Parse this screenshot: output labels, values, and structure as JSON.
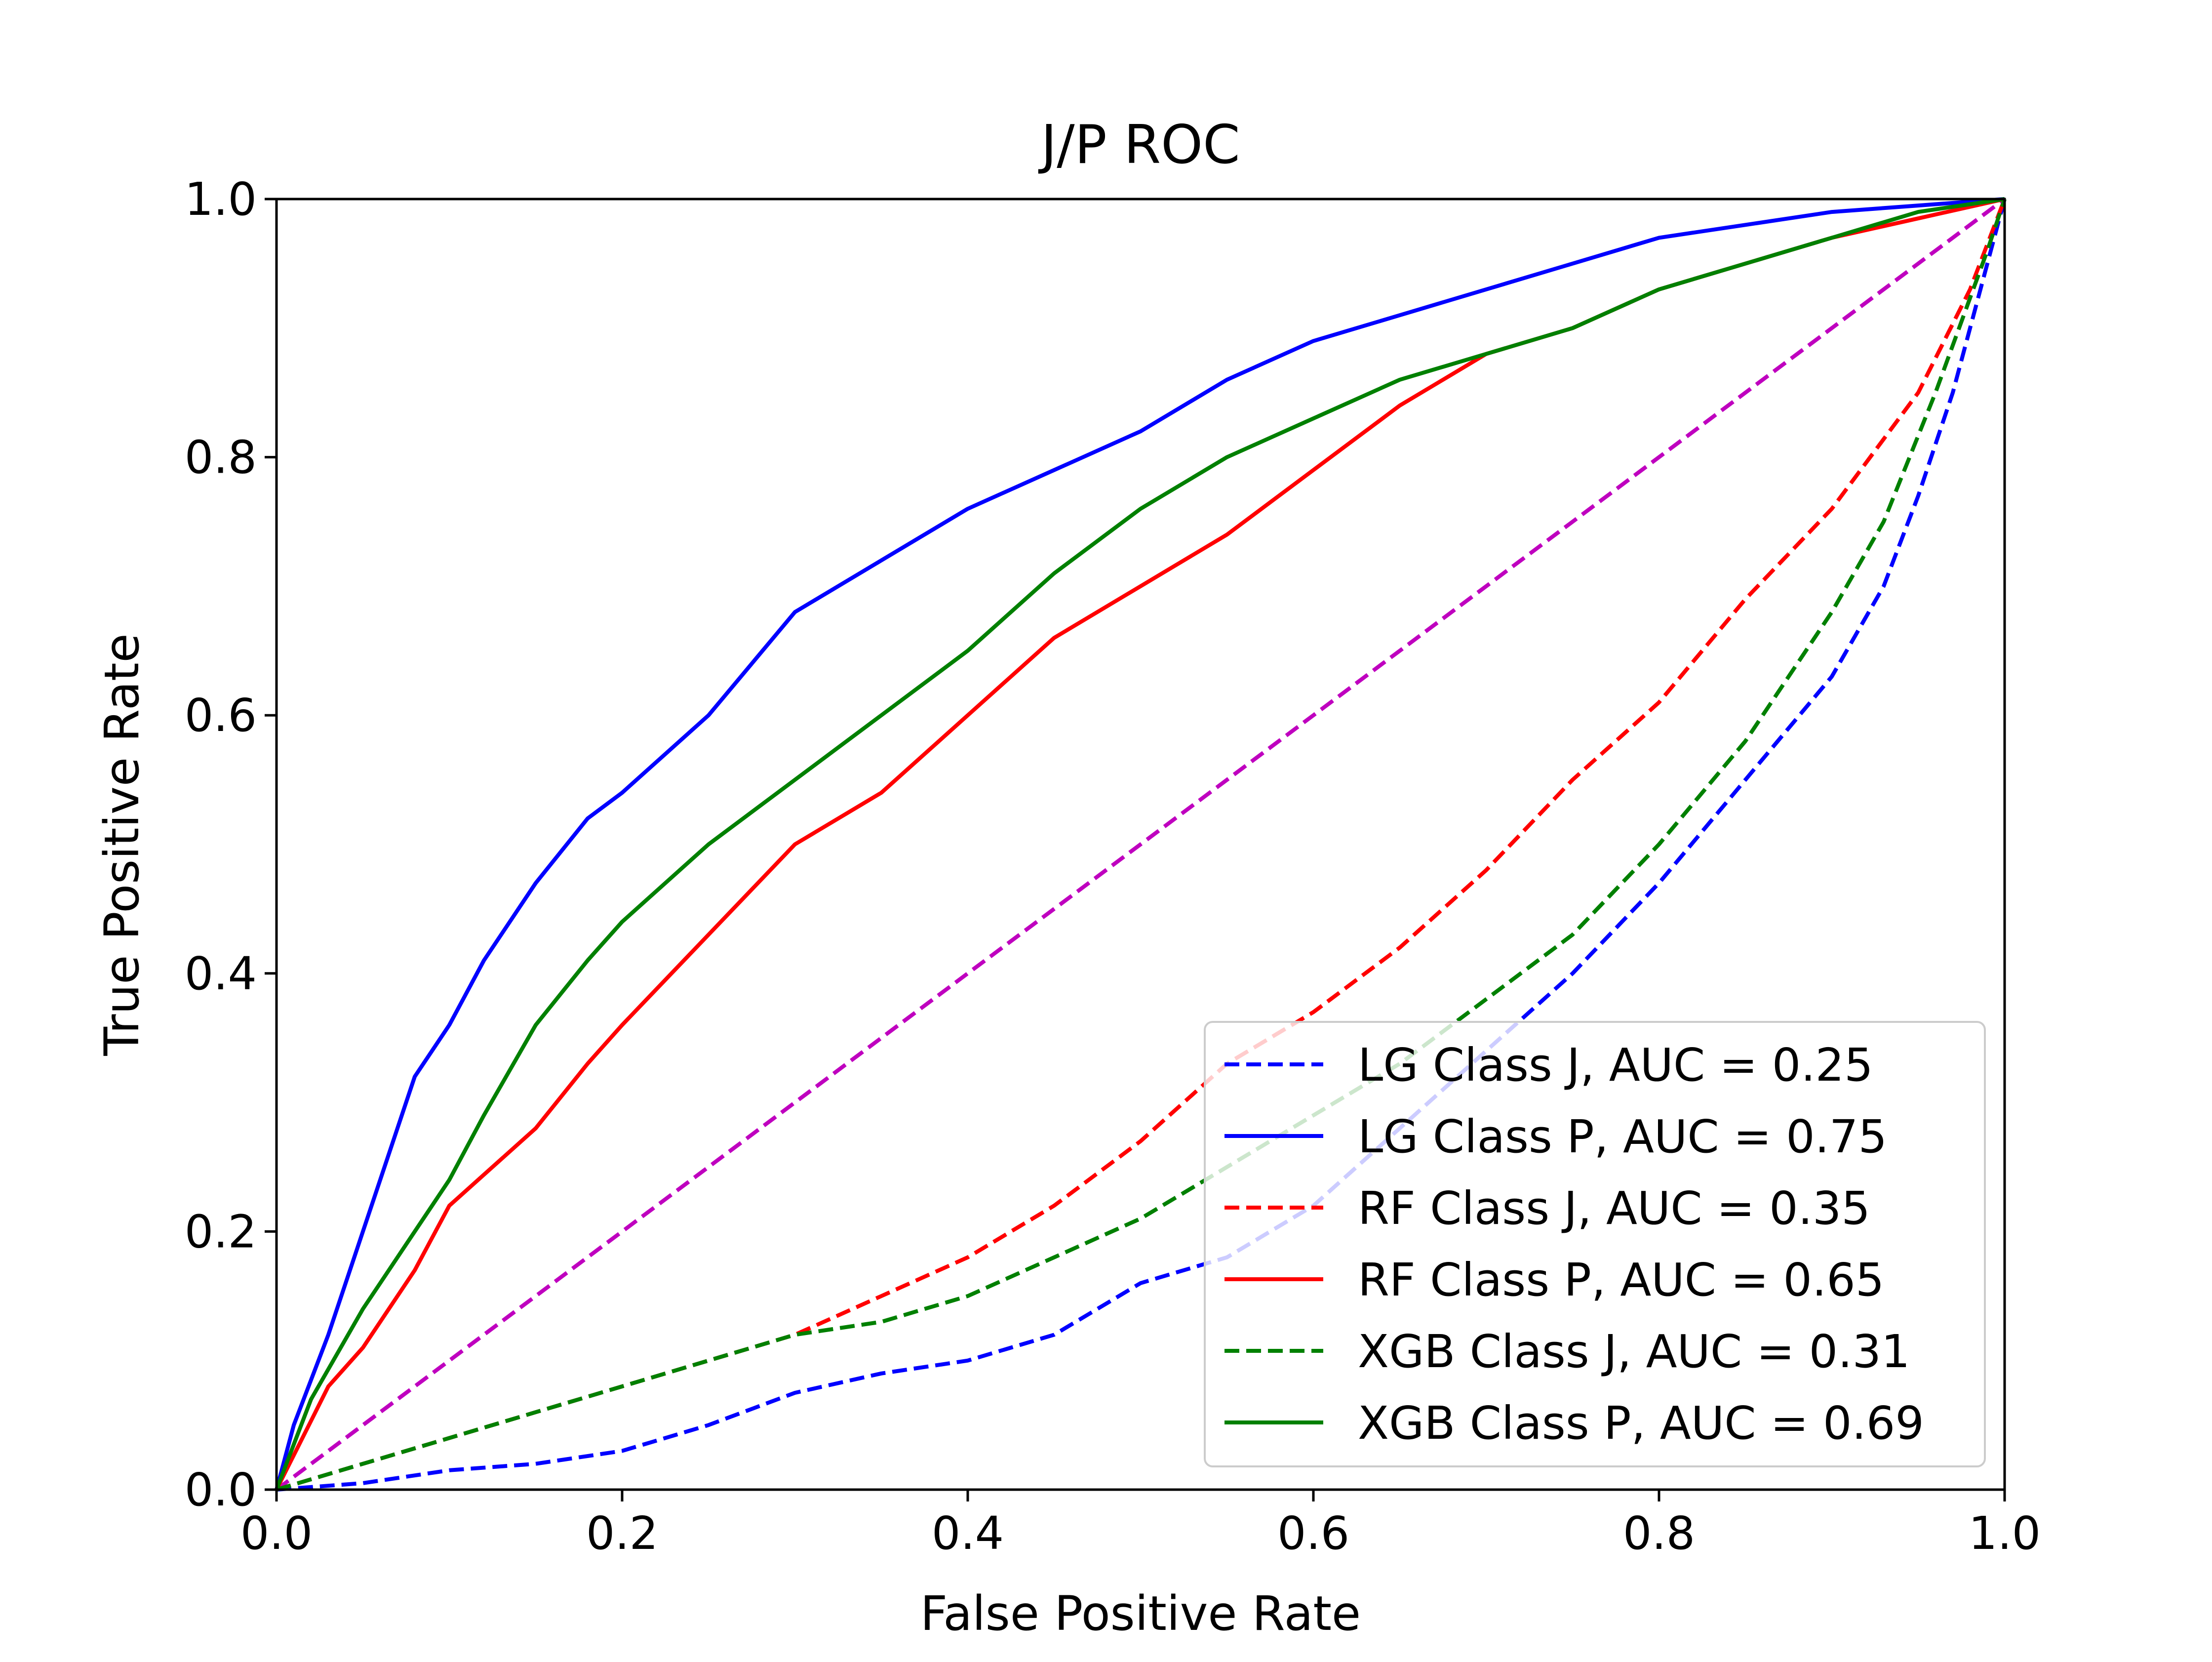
{
  "chart_data": {
    "type": "line",
    "title": "J/P ROC",
    "xlabel": "False Positive Rate",
    "ylabel": "True Positive Rate",
    "xlim": [
      0.0,
      1.0
    ],
    "ylim": [
      0.0,
      1.0
    ],
    "x_ticks": [
      "0.0",
      "0.2",
      "0.4",
      "0.6",
      "0.8",
      "1.0"
    ],
    "y_ticks": [
      "0.0",
      "0.2",
      "0.4",
      "0.6",
      "0.8",
      "1.0"
    ],
    "grid": false,
    "legend_position": "lower-right",
    "diagonal": {
      "color": "#bf00bf",
      "style": "dashed",
      "points": [
        [
          0,
          0
        ],
        [
          1,
          1
        ]
      ]
    },
    "series": [
      {
        "name": "LG Class J, AUC = 0.25",
        "color": "#0000ff",
        "style": "dashed",
        "points": [
          [
            0,
            0
          ],
          [
            0.05,
            0.005
          ],
          [
            0.1,
            0.015
          ],
          [
            0.15,
            0.02
          ],
          [
            0.2,
            0.03
          ],
          [
            0.25,
            0.05
          ],
          [
            0.3,
            0.075
          ],
          [
            0.35,
            0.09
          ],
          [
            0.4,
            0.1
          ],
          [
            0.45,
            0.12
          ],
          [
            0.5,
            0.16
          ],
          [
            0.55,
            0.18
          ],
          [
            0.6,
            0.22
          ],
          [
            0.65,
            0.28
          ],
          [
            0.7,
            0.34
          ],
          [
            0.75,
            0.4
          ],
          [
            0.8,
            0.47
          ],
          [
            0.85,
            0.55
          ],
          [
            0.9,
            0.63
          ],
          [
            0.93,
            0.7
          ],
          [
            0.95,
            0.77
          ],
          [
            0.97,
            0.85
          ],
          [
            0.99,
            0.95
          ],
          [
            1,
            1
          ]
        ]
      },
      {
        "name": "LG Class P, AUC = 0.75",
        "color": "#0000ff",
        "style": "solid",
        "points": [
          [
            0,
            0
          ],
          [
            0.01,
            0.05
          ],
          [
            0.03,
            0.12
          ],
          [
            0.05,
            0.2
          ],
          [
            0.08,
            0.32
          ],
          [
            0.1,
            0.36
          ],
          [
            0.12,
            0.41
          ],
          [
            0.15,
            0.47
          ],
          [
            0.18,
            0.52
          ],
          [
            0.2,
            0.54
          ],
          [
            0.25,
            0.6
          ],
          [
            0.3,
            0.68
          ],
          [
            0.35,
            0.72
          ],
          [
            0.4,
            0.76
          ],
          [
            0.45,
            0.79
          ],
          [
            0.5,
            0.82
          ],
          [
            0.55,
            0.86
          ],
          [
            0.6,
            0.89
          ],
          [
            0.65,
            0.91
          ],
          [
            0.7,
            0.93
          ],
          [
            0.75,
            0.95
          ],
          [
            0.8,
            0.97
          ],
          [
            0.85,
            0.98
          ],
          [
            0.9,
            0.99
          ],
          [
            0.95,
            0.995
          ],
          [
            1,
            1
          ]
        ]
      },
      {
        "name": "RF Class J, AUC = 0.35",
        "color": "#ff0000",
        "style": "dashed",
        "points": [
          [
            0,
            0
          ],
          [
            0.05,
            0.02
          ],
          [
            0.1,
            0.04
          ],
          [
            0.15,
            0.06
          ],
          [
            0.2,
            0.08
          ],
          [
            0.25,
            0.1
          ],
          [
            0.3,
            0.12
          ],
          [
            0.35,
            0.15
          ],
          [
            0.4,
            0.18
          ],
          [
            0.45,
            0.22
          ],
          [
            0.5,
            0.27
          ],
          [
            0.55,
            0.33
          ],
          [
            0.6,
            0.37
          ],
          [
            0.65,
            0.42
          ],
          [
            0.7,
            0.48
          ],
          [
            0.75,
            0.55
          ],
          [
            0.8,
            0.61
          ],
          [
            0.85,
            0.69
          ],
          [
            0.9,
            0.76
          ],
          [
            0.95,
            0.85
          ],
          [
            0.98,
            0.93
          ],
          [
            1,
            1
          ]
        ]
      },
      {
        "name": "RF Class P, AUC = 0.65",
        "color": "#ff0000",
        "style": "solid",
        "points": [
          [
            0,
            0
          ],
          [
            0.03,
            0.08
          ],
          [
            0.05,
            0.11
          ],
          [
            0.08,
            0.17
          ],
          [
            0.1,
            0.22
          ],
          [
            0.15,
            0.28
          ],
          [
            0.18,
            0.33
          ],
          [
            0.2,
            0.36
          ],
          [
            0.25,
            0.43
          ],
          [
            0.3,
            0.5
          ],
          [
            0.35,
            0.54
          ],
          [
            0.4,
            0.6
          ],
          [
            0.45,
            0.66
          ],
          [
            0.5,
            0.7
          ],
          [
            0.55,
            0.74
          ],
          [
            0.6,
            0.79
          ],
          [
            0.65,
            0.84
          ],
          [
            0.7,
            0.88
          ],
          [
            0.75,
            0.9
          ],
          [
            0.8,
            0.93
          ],
          [
            0.85,
            0.95
          ],
          [
            0.9,
            0.97
          ],
          [
            0.95,
            0.985
          ],
          [
            1,
            1
          ]
        ]
      },
      {
        "name": "XGB Class J, AUC = 0.31",
        "color": "#008000",
        "style": "dashed",
        "points": [
          [
            0,
            0
          ],
          [
            0.05,
            0.02
          ],
          [
            0.1,
            0.04
          ],
          [
            0.15,
            0.06
          ],
          [
            0.2,
            0.08
          ],
          [
            0.25,
            0.1
          ],
          [
            0.3,
            0.12
          ],
          [
            0.35,
            0.13
          ],
          [
            0.4,
            0.15
          ],
          [
            0.45,
            0.18
          ],
          [
            0.5,
            0.21
          ],
          [
            0.55,
            0.25
          ],
          [
            0.6,
            0.29
          ],
          [
            0.65,
            0.33
          ],
          [
            0.7,
            0.38
          ],
          [
            0.75,
            0.43
          ],
          [
            0.8,
            0.5
          ],
          [
            0.85,
            0.58
          ],
          [
            0.9,
            0.68
          ],
          [
            0.93,
            0.75
          ],
          [
            0.96,
            0.85
          ],
          [
            0.99,
            0.96
          ],
          [
            1,
            1
          ]
        ]
      },
      {
        "name": "XGB Class P, AUC = 0.69",
        "color": "#008000",
        "style": "solid",
        "points": [
          [
            0,
            0
          ],
          [
            0.02,
            0.07
          ],
          [
            0.05,
            0.14
          ],
          [
            0.08,
            0.2
          ],
          [
            0.1,
            0.24
          ],
          [
            0.12,
            0.29
          ],
          [
            0.15,
            0.36
          ],
          [
            0.18,
            0.41
          ],
          [
            0.2,
            0.44
          ],
          [
            0.25,
            0.5
          ],
          [
            0.3,
            0.55
          ],
          [
            0.35,
            0.6
          ],
          [
            0.4,
            0.65
          ],
          [
            0.45,
            0.71
          ],
          [
            0.5,
            0.76
          ],
          [
            0.55,
            0.8
          ],
          [
            0.6,
            0.83
          ],
          [
            0.65,
            0.86
          ],
          [
            0.7,
            0.88
          ],
          [
            0.75,
            0.9
          ],
          [
            0.8,
            0.93
          ],
          [
            0.85,
            0.95
          ],
          [
            0.9,
            0.97
          ],
          [
            0.95,
            0.99
          ],
          [
            1,
            1
          ]
        ]
      }
    ]
  }
}
